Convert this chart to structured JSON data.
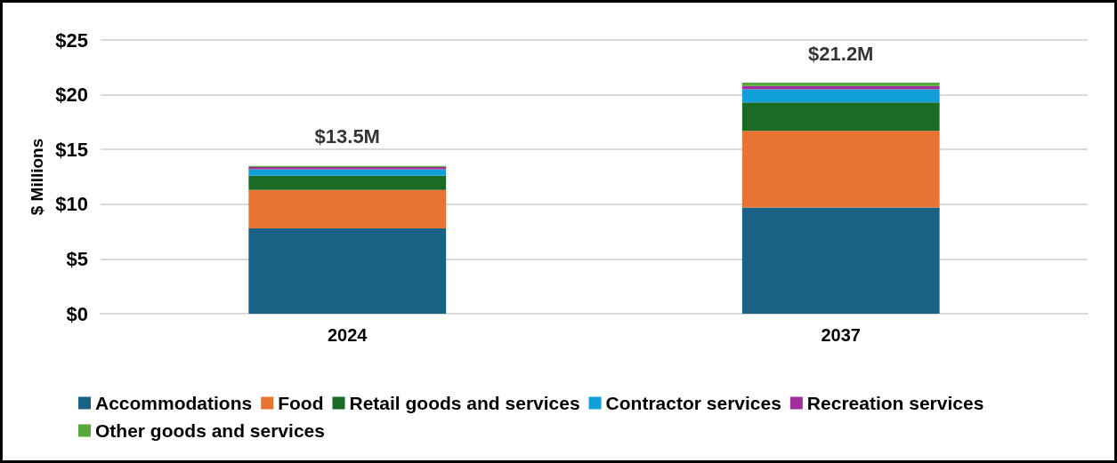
{
  "chart_data": {
    "type": "bar",
    "stacked": true,
    "ylabel": "$ Millions",
    "categories": [
      "2024",
      "2037"
    ],
    "series": [
      {
        "name": "Accommodations",
        "color": "#196285",
        "values": [
          7.8,
          9.7
        ]
      },
      {
        "name": "Food",
        "color": "#e97333",
        "values": [
          3.5,
          7.0
        ]
      },
      {
        "name": "Retail goods and services",
        "color": "#1b6b24",
        "values": [
          1.3,
          2.6
        ]
      },
      {
        "name": "Contractor services",
        "color": "#139fd7",
        "values": [
          0.6,
          1.2
        ]
      },
      {
        "name": "Recreation services",
        "color": "#a0319a",
        "values": [
          0.2,
          0.3
        ]
      },
      {
        "name": "Other goods and services",
        "color": "#56a83c",
        "values": [
          0.1,
          0.3
        ]
      }
    ],
    "totals": [
      "$13.5M",
      "$21.2M"
    ],
    "ylim": [
      0,
      25
    ],
    "yticks": [
      {
        "value": 0,
        "label": "$0"
      },
      {
        "value": 5,
        "label": "$5"
      },
      {
        "value": 10,
        "label": "$10"
      },
      {
        "value": 15,
        "label": "$15"
      },
      {
        "value": 20,
        "label": "$20"
      },
      {
        "value": 25,
        "label": "$25"
      }
    ],
    "grid": "y",
    "legend": "bottom"
  }
}
